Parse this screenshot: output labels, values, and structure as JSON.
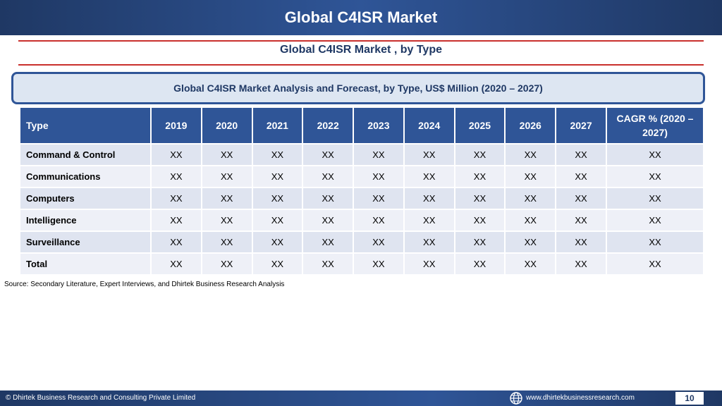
{
  "header": {
    "title": "Global C4ISR Market"
  },
  "subtitle": "Global C4ISR Market , by Type",
  "caption": "Global C4ISR Market  Analysis and Forecast, by Type, US$ Million (2020 – 2027)",
  "table": {
    "columns": [
      "Type",
      "2019",
      "2020",
      "2021",
      "2022",
      "2023",
      "2024",
      "2025",
      "2026",
      "2027",
      "CAGR % (2020 – 2027)"
    ],
    "rows": [
      [
        "Command & Control",
        "XX",
        "XX",
        "XX",
        "XX",
        "XX",
        "XX",
        "XX",
        "XX",
        "XX",
        "XX"
      ],
      [
        "Communications",
        "XX",
        "XX",
        "XX",
        "XX",
        "XX",
        "XX",
        "XX",
        "XX",
        "XX",
        "XX"
      ],
      [
        "Computers",
        "XX",
        "XX",
        "XX",
        "XX",
        "XX",
        "XX",
        "XX",
        "XX",
        "XX",
        "XX"
      ],
      [
        "Intelligence",
        "XX",
        "XX",
        "XX",
        "XX",
        "XX",
        "XX",
        "XX",
        "XX",
        "XX",
        "XX"
      ],
      [
        "Surveillance",
        "XX",
        "XX",
        "XX",
        "XX",
        "XX",
        "XX",
        "XX",
        "XX",
        "XX",
        "XX"
      ],
      [
        "Total",
        "XX",
        "XX",
        "XX",
        "XX",
        "XX",
        "XX",
        "XX",
        "XX",
        "XX",
        "XX"
      ]
    ]
  },
  "source": "Source: Secondary Literature, Expert Interviews, and Dhirtek Business Research Analysis",
  "footer": {
    "copyright": "© Dhirtek Business Research and Consulting Private Limited",
    "website": "www.dhirtekbusinessresearch.com",
    "page_number": "10",
    "globe_icon": "globe-icon"
  },
  "colors": {
    "header_blue": "#1f3864",
    "accent_blue": "#2f5597",
    "rule_red": "#c9302c",
    "row_light": "#dfe4f0"
  }
}
